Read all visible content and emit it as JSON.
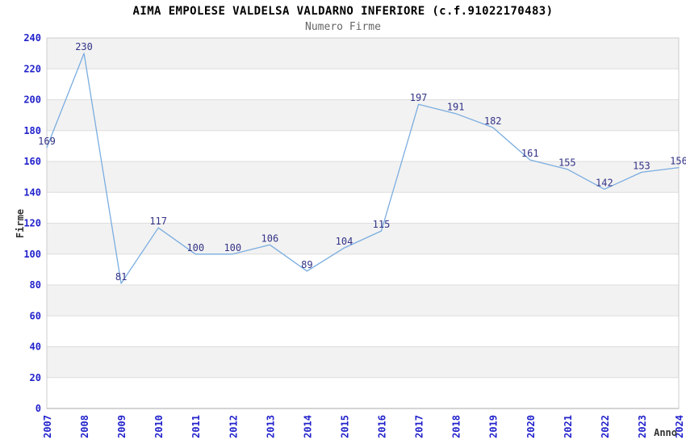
{
  "header": {
    "title": "AIMA EMPOLESE VALDELSA VALDARNO INFERIORE (c.f.91022170483)",
    "subtitle": "Numero Firme"
  },
  "chart_data": {
    "type": "line",
    "title": "AIMA EMPOLESE VALDELSA VALDARNO INFERIORE (c.f.91022170483)",
    "subtitle": "Numero Firme",
    "xlabel": "Anno",
    "ylabel": "Firme",
    "categories": [
      "2007",
      "2008",
      "2009",
      "2010",
      "2011",
      "2012",
      "2013",
      "2014",
      "2015",
      "2016",
      "2017",
      "2018",
      "2019",
      "2020",
      "2021",
      "2022",
      "2023",
      "2024"
    ],
    "values": [
      169,
      230,
      81,
      117,
      100,
      100,
      106,
      89,
      104,
      115,
      197,
      191,
      182,
      161,
      155,
      142,
      153,
      156
    ],
    "ylim": [
      0,
      240
    ],
    "ytick_step": 20,
    "yticks": [
      0,
      20,
      40,
      60,
      80,
      100,
      120,
      140,
      160,
      180,
      200,
      220,
      240
    ],
    "legend": "none",
    "grid": "horizontal gridlines with alternating shaded bands",
    "value_labels_shown": true,
    "colors": {
      "line": "#7aade0",
      "value_label": "#333388",
      "tick_label": "#2222cc",
      "axis_title": "#333333",
      "band": "#f2f2f2",
      "gridline": "#dddddd",
      "plot_border": "#cccccc",
      "axis_line": "#aaaaaa",
      "title": "#000000",
      "subtitle": "#666666",
      "background": "#ffffff"
    }
  }
}
